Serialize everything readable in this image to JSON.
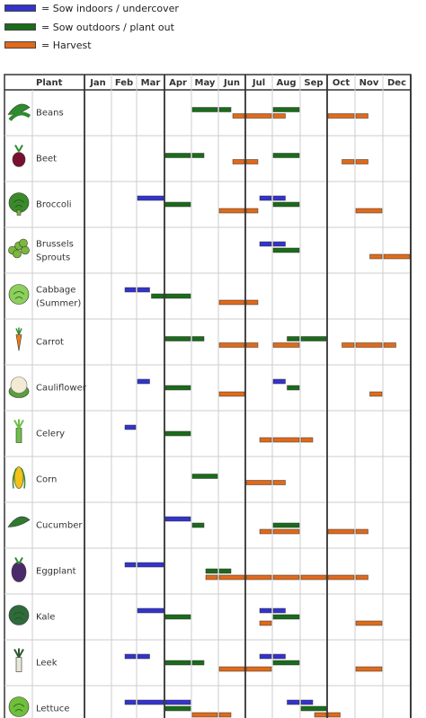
{
  "legend": [
    {
      "label": "= Sow indoors / undercover",
      "color": "#3333cc"
    },
    {
      "label": "= Sow outdoors / plant out",
      "color": "#1a6b1a"
    },
    {
      "label": "= Harvest",
      "color": "#e06a1a"
    }
  ],
  "chart_data": {
    "type": "gantt",
    "column_header": "Plant",
    "months": [
      "Jan",
      "Feb",
      "Mar",
      "Apr",
      "May",
      "Jun",
      "Jul",
      "Aug",
      "Sep",
      "Oct",
      "Nov",
      "Dec"
    ],
    "colors": {
      "indoor": "#3333cc",
      "outdoor": "#1a6b1a",
      "harvest": "#e06a1a"
    },
    "rows": [
      {
        "plant": "Beans",
        "icon": "beans-icon",
        "bars": [
          {
            "type": "outdoor",
            "start": 5.0,
            "end": 6.0,
            "lane": 0
          },
          {
            "type": "outdoor",
            "start": 6.0,
            "end": 6.5,
            "lane": 0
          },
          {
            "type": "outdoor",
            "start": 8.0,
            "end": 9.0,
            "lane": 0
          },
          {
            "type": "harvest",
            "start": 6.5,
            "end": 7.0,
            "lane": 1
          },
          {
            "type": "harvest",
            "start": 7.0,
            "end": 8.0,
            "lane": 1
          },
          {
            "type": "harvest",
            "start": 8.0,
            "end": 8.5,
            "lane": 1
          },
          {
            "type": "harvest",
            "start": 10.0,
            "end": 11.0,
            "lane": 1
          },
          {
            "type": "harvest",
            "start": 11.0,
            "end": 11.5,
            "lane": 1
          }
        ]
      },
      {
        "plant": "Beet",
        "icon": "beet-icon",
        "bars": [
          {
            "type": "outdoor",
            "start": 4.0,
            "end": 5.0,
            "lane": 0
          },
          {
            "type": "outdoor",
            "start": 5.0,
            "end": 5.5,
            "lane": 0
          },
          {
            "type": "outdoor",
            "start": 8.0,
            "end": 9.0,
            "lane": 0
          },
          {
            "type": "harvest",
            "start": 6.5,
            "end": 7.0,
            "lane": 1
          },
          {
            "type": "harvest",
            "start": 7.0,
            "end": 7.5,
            "lane": 1
          },
          {
            "type": "harvest",
            "start": 10.5,
            "end": 11.0,
            "lane": 1
          },
          {
            "type": "harvest",
            "start": 11.0,
            "end": 11.5,
            "lane": 1
          }
        ]
      },
      {
        "plant": "Broccoli",
        "icon": "broccoli-icon",
        "bars": [
          {
            "type": "indoor",
            "start": 3.0,
            "end": 4.0,
            "lane": 0
          },
          {
            "type": "indoor",
            "start": 7.5,
            "end": 8.0,
            "lane": 0
          },
          {
            "type": "indoor",
            "start": 8.0,
            "end": 8.5,
            "lane": 0
          },
          {
            "type": "outdoor",
            "start": 4.0,
            "end": 5.0,
            "lane": 1
          },
          {
            "type": "outdoor",
            "start": 8.0,
            "end": 9.0,
            "lane": 1
          },
          {
            "type": "harvest",
            "start": 6.0,
            "end": 7.0,
            "lane": 2
          },
          {
            "type": "harvest",
            "start": 7.0,
            "end": 7.5,
            "lane": 2
          },
          {
            "type": "harvest",
            "start": 11.0,
            "end": 12.0,
            "lane": 2
          }
        ]
      },
      {
        "plant": "Brussels Sprouts",
        "icon": "brussels-sprouts-icon",
        "bars": [
          {
            "type": "indoor",
            "start": 7.5,
            "end": 8.0,
            "lane": 0
          },
          {
            "type": "indoor",
            "start": 8.0,
            "end": 8.5,
            "lane": 0
          },
          {
            "type": "outdoor",
            "start": 8.0,
            "end": 9.0,
            "lane": 1
          },
          {
            "type": "harvest",
            "start": 11.5,
            "end": 12.0,
            "lane": 2
          },
          {
            "type": "harvest",
            "start": 12.0,
            "end": 13.0,
            "lane": 2
          }
        ]
      },
      {
        "plant": "Cabbage (Summer)",
        "icon": "cabbage-icon",
        "bars": [
          {
            "type": "indoor",
            "start": 2.5,
            "end": 3.0,
            "lane": 0
          },
          {
            "type": "indoor",
            "start": 3.0,
            "end": 3.5,
            "lane": 0
          },
          {
            "type": "outdoor",
            "start": 3.5,
            "end": 4.0,
            "lane": 1
          },
          {
            "type": "outdoor",
            "start": 4.0,
            "end": 5.0,
            "lane": 1
          },
          {
            "type": "harvest",
            "start": 6.0,
            "end": 7.0,
            "lane": 2
          },
          {
            "type": "harvest",
            "start": 7.0,
            "end": 7.5,
            "lane": 2
          }
        ]
      },
      {
        "plant": "Carrot",
        "icon": "carrot-icon",
        "bars": [
          {
            "type": "outdoor",
            "start": 4.0,
            "end": 5.0,
            "lane": 0
          },
          {
            "type": "outdoor",
            "start": 5.0,
            "end": 5.5,
            "lane": 0
          },
          {
            "type": "outdoor",
            "start": 8.5,
            "end": 9.0,
            "lane": 0
          },
          {
            "type": "outdoor",
            "start": 9.0,
            "end": 10.0,
            "lane": 0
          },
          {
            "type": "harvest",
            "start": 6.0,
            "end": 7.0,
            "lane": 1
          },
          {
            "type": "harvest",
            "start": 7.0,
            "end": 7.5,
            "lane": 1
          },
          {
            "type": "harvest",
            "start": 8.0,
            "end": 9.0,
            "lane": 1
          },
          {
            "type": "harvest",
            "start": 10.5,
            "end": 11.0,
            "lane": 1
          },
          {
            "type": "harvest",
            "start": 11.0,
            "end": 12.0,
            "lane": 1
          },
          {
            "type": "harvest",
            "start": 12.0,
            "end": 12.5,
            "lane": 1
          }
        ]
      },
      {
        "plant": "Cauliflower",
        "icon": "cauliflower-icon",
        "bars": [
          {
            "type": "indoor",
            "start": 3.0,
            "end": 3.5,
            "lane": 0
          },
          {
            "type": "indoor",
            "start": 8.0,
            "end": 8.5,
            "lane": 0
          },
          {
            "type": "outdoor",
            "start": 4.0,
            "end": 5.0,
            "lane": 1
          },
          {
            "type": "outdoor",
            "start": 8.5,
            "end": 9.0,
            "lane": 1
          },
          {
            "type": "harvest",
            "start": 6.0,
            "end": 7.0,
            "lane": 2
          },
          {
            "type": "harvest",
            "start": 11.5,
            "end": 12.0,
            "lane": 2
          }
        ]
      },
      {
        "plant": "Celery",
        "icon": "celery-icon",
        "bars": [
          {
            "type": "indoor",
            "start": 2.5,
            "end": 3.0,
            "lane": 0
          },
          {
            "type": "outdoor",
            "start": 4.0,
            "end": 5.0,
            "lane": 1
          },
          {
            "type": "harvest",
            "start": 7.5,
            "end": 8.0,
            "lane": 2
          },
          {
            "type": "harvest",
            "start": 8.0,
            "end": 9.0,
            "lane": 2
          },
          {
            "type": "harvest",
            "start": 9.0,
            "end": 9.5,
            "lane": 2
          }
        ]
      },
      {
        "plant": "Corn",
        "icon": "corn-icon",
        "bars": [
          {
            "type": "outdoor",
            "start": 5.0,
            "end": 6.0,
            "lane": 0
          },
          {
            "type": "harvest",
            "start": 7.0,
            "end": 8.0,
            "lane": 1
          },
          {
            "type": "harvest",
            "start": 8.0,
            "end": 8.5,
            "lane": 1
          }
        ]
      },
      {
        "plant": "Cucumber",
        "icon": "cucumber-icon",
        "bars": [
          {
            "type": "indoor",
            "start": 4.0,
            "end": 5.0,
            "lane": 0
          },
          {
            "type": "outdoor",
            "start": 5.0,
            "end": 5.5,
            "lane": 1
          },
          {
            "type": "outdoor",
            "start": 8.0,
            "end": 9.0,
            "lane": 1
          },
          {
            "type": "harvest",
            "start": 7.5,
            "end": 8.0,
            "lane": 2
          },
          {
            "type": "harvest",
            "start": 8.0,
            "end": 9.0,
            "lane": 2
          },
          {
            "type": "harvest",
            "start": 10.0,
            "end": 11.0,
            "lane": 2
          },
          {
            "type": "harvest",
            "start": 11.0,
            "end": 11.5,
            "lane": 2
          }
        ]
      },
      {
        "plant": "Eggplant",
        "icon": "eggplant-icon",
        "bars": [
          {
            "type": "indoor",
            "start": 2.5,
            "end": 3.0,
            "lane": 0
          },
          {
            "type": "indoor",
            "start": 3.0,
            "end": 4.0,
            "lane": 0
          },
          {
            "type": "outdoor",
            "start": 5.5,
            "end": 6.0,
            "lane": 1
          },
          {
            "type": "outdoor",
            "start": 6.0,
            "end": 6.5,
            "lane": 1
          },
          {
            "type": "harvest",
            "start": 5.5,
            "end": 6.0,
            "lane": 2
          },
          {
            "type": "harvest",
            "start": 6.0,
            "end": 7.0,
            "lane": 2
          },
          {
            "type": "harvest",
            "start": 7.0,
            "end": 8.0,
            "lane": 2
          },
          {
            "type": "harvest",
            "start": 8.0,
            "end": 9.0,
            "lane": 2
          },
          {
            "type": "harvest",
            "start": 9.0,
            "end": 10.0,
            "lane": 2
          },
          {
            "type": "harvest",
            "start": 10.0,
            "end": 11.0,
            "lane": 2
          },
          {
            "type": "harvest",
            "start": 11.0,
            "end": 11.5,
            "lane": 2
          }
        ]
      },
      {
        "plant": "Kale",
        "icon": "kale-icon",
        "bars": [
          {
            "type": "indoor",
            "start": 3.0,
            "end": 4.0,
            "lane": 0
          },
          {
            "type": "indoor",
            "start": 7.5,
            "end": 8.0,
            "lane": 0
          },
          {
            "type": "indoor",
            "start": 8.0,
            "end": 8.5,
            "lane": 0
          },
          {
            "type": "outdoor",
            "start": 4.0,
            "end": 5.0,
            "lane": 1
          },
          {
            "type": "outdoor",
            "start": 8.0,
            "end": 9.0,
            "lane": 1
          },
          {
            "type": "harvest",
            "start": 7.5,
            "end": 8.0,
            "lane": 2
          },
          {
            "type": "harvest",
            "start": 11.0,
            "end": 12.0,
            "lane": 2
          }
        ]
      },
      {
        "plant": "Leek",
        "icon": "leek-icon",
        "bars": [
          {
            "type": "indoor",
            "start": 2.5,
            "end": 3.0,
            "lane": 0
          },
          {
            "type": "indoor",
            "start": 3.0,
            "end": 3.5,
            "lane": 0
          },
          {
            "type": "indoor",
            "start": 7.5,
            "end": 8.0,
            "lane": 0
          },
          {
            "type": "indoor",
            "start": 8.0,
            "end": 8.5,
            "lane": 0
          },
          {
            "type": "outdoor",
            "start": 4.0,
            "end": 5.0,
            "lane": 1
          },
          {
            "type": "outdoor",
            "start": 5.0,
            "end": 5.5,
            "lane": 1
          },
          {
            "type": "outdoor",
            "start": 8.0,
            "end": 9.0,
            "lane": 1
          },
          {
            "type": "harvest",
            "start": 6.0,
            "end": 7.0,
            "lane": 2
          },
          {
            "type": "harvest",
            "start": 7.0,
            "end": 8.0,
            "lane": 2
          },
          {
            "type": "harvest",
            "start": 11.0,
            "end": 12.0,
            "lane": 2
          }
        ]
      },
      {
        "plant": "Lettuce",
        "icon": "lettuce-icon",
        "bars": [
          {
            "type": "indoor",
            "start": 2.5,
            "end": 3.0,
            "lane": 0
          },
          {
            "type": "indoor",
            "start": 3.0,
            "end": 4.0,
            "lane": 0
          },
          {
            "type": "indoor",
            "start": 4.0,
            "end": 5.0,
            "lane": 0
          },
          {
            "type": "indoor",
            "start": 8.5,
            "end": 9.0,
            "lane": 0
          },
          {
            "type": "indoor",
            "start": 9.0,
            "end": 9.5,
            "lane": 0
          },
          {
            "type": "outdoor",
            "start": 4.0,
            "end": 5.0,
            "lane": 1
          },
          {
            "type": "outdoor",
            "start": 9.0,
            "end": 10.0,
            "lane": 1
          },
          {
            "type": "harvest",
            "start": 5.0,
            "end": 6.0,
            "lane": 2
          },
          {
            "type": "harvest",
            "start": 6.0,
            "end": 6.5,
            "lane": 2
          },
          {
            "type": "harvest",
            "start": 9.5,
            "end": 10.0,
            "lane": 2
          },
          {
            "type": "harvest",
            "start": 10.0,
            "end": 10.5,
            "lane": 2
          }
        ]
      }
    ]
  }
}
